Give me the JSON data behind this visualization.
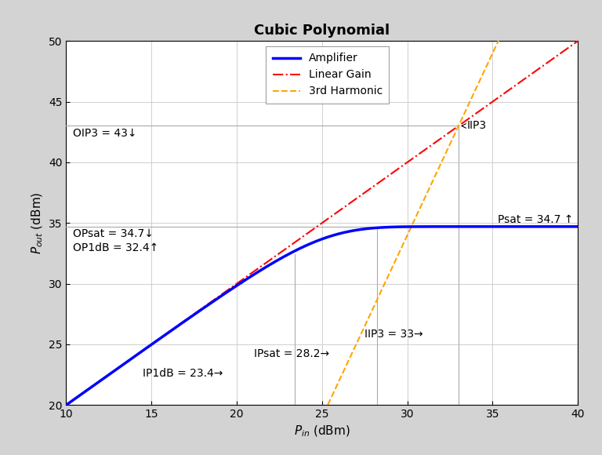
{
  "title": "Cubic Polynomial",
  "xlim": [
    10,
    40
  ],
  "ylim": [
    20,
    50
  ],
  "xticks": [
    10,
    15,
    20,
    25,
    30,
    35,
    40
  ],
  "yticks": [
    20,
    25,
    30,
    35,
    40,
    45,
    50
  ],
  "gain_dB": 10,
  "OIP3_dBm": 43,
  "IIP3_dBm": 33,
  "OPsat_dBm": 34.7,
  "IPsat_dBm": 28.2,
  "OP1dB_dBm": 32.4,
  "IP1dB_dBm": 23.4,
  "Psat_label": 34.7,
  "amplifier_color": "#0000FF",
  "linear_color": "#FF0000",
  "harmonic_color": "#FFA500",
  "vline_color": "#AAAAAA",
  "hline_color": "#AAAAAA",
  "bg_color": "#D3D3D3",
  "plot_bg_color": "#FFFFFF",
  "legend_labels": [
    "Amplifier",
    "Linear Gain",
    "3rd Harmonic"
  ],
  "title_fontsize": 13,
  "label_fontsize": 11,
  "tick_fontsize": 10,
  "annot_fontsize": 10
}
